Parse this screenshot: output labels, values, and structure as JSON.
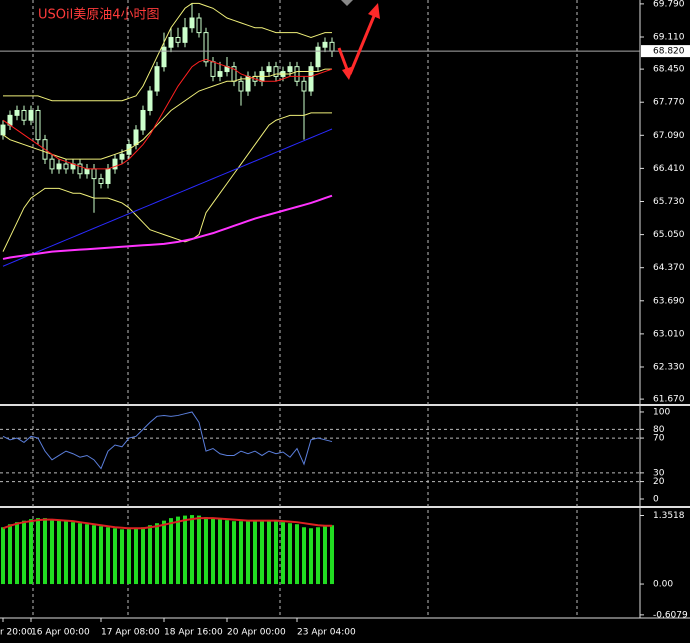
{
  "chart_data": [
    {
      "type": "candlestick",
      "title": "USOil美原油4小时图",
      "categories": [
        "r 20:00",
        null,
        null,
        null,
        "16 Apr 00:00",
        null,
        null,
        null,
        null,
        null,
        null,
        null,
        null,
        null,
        "17 Apr 08:00",
        null,
        null,
        null,
        null,
        null,
        null,
        null,
        null,
        "18 Apr 16:00",
        null,
        null,
        null,
        null,
        null,
        null,
        null,
        null,
        "20 Apr 00:00",
        null,
        null,
        null,
        null,
        null,
        null,
        null,
        null,
        null,
        "23 Apr 04:00",
        null,
        null,
        null,
        null,
        null
      ],
      "open": [
        67.1,
        67.3,
        67.5,
        67.6,
        67.4,
        67.6,
        67.0,
        66.6,
        66.4,
        66.5,
        66.4,
        66.5,
        66.3,
        66.4,
        66.2,
        66.1,
        66.4,
        66.6,
        66.7,
        66.9,
        67.2,
        67.6,
        68.0,
        68.5,
        68.9,
        69.1,
        69.0,
        69.3,
        69.5,
        69.2,
        68.6,
        68.3,
        68.4,
        68.5,
        68.2,
        68.0,
        68.3,
        68.2,
        68.4,
        68.5,
        68.3,
        68.4,
        68.5,
        68.2,
        68.0,
        68.5,
        68.9,
        69.0
      ],
      "high": [
        67.4,
        67.6,
        67.7,
        67.7,
        67.7,
        67.7,
        67.1,
        66.7,
        66.6,
        66.6,
        66.6,
        66.6,
        66.5,
        66.5,
        66.3,
        66.5,
        66.7,
        66.8,
        67.0,
        67.3,
        67.7,
        68.1,
        68.6,
        69.2,
        69.3,
        69.3,
        69.5,
        69.8,
        69.6,
        69.3,
        68.7,
        68.6,
        68.7,
        68.6,
        68.3,
        68.4,
        68.4,
        68.5,
        68.6,
        68.6,
        68.5,
        68.6,
        68.6,
        68.3,
        68.6,
        69.0,
        69.1,
        69.1
      ],
      "low": [
        67.0,
        67.2,
        67.4,
        67.3,
        67.3,
        66.9,
        66.5,
        66.3,
        66.3,
        66.3,
        66.3,
        66.2,
        66.2,
        65.5,
        66.0,
        66.0,
        66.3,
        66.5,
        66.6,
        66.8,
        67.1,
        67.5,
        67.9,
        68.4,
        68.8,
        68.9,
        68.9,
        69.2,
        69.1,
        68.5,
        68.2,
        68.2,
        68.3,
        68.1,
        67.7,
        67.9,
        68.1,
        68.1,
        68.3,
        68.2,
        68.2,
        68.3,
        68.1,
        67.0,
        67.9,
        68.4,
        68.8,
        68.7
      ],
      "close": [
        67.3,
        67.5,
        67.6,
        67.4,
        67.6,
        67.0,
        66.6,
        66.4,
        66.5,
        66.4,
        66.5,
        66.3,
        66.4,
        66.2,
        66.1,
        66.4,
        66.6,
        66.7,
        66.9,
        67.2,
        67.6,
        68.0,
        68.5,
        68.9,
        69.1,
        69.0,
        69.3,
        69.5,
        69.2,
        68.6,
        68.3,
        68.4,
        68.5,
        68.2,
        68.0,
        68.3,
        68.2,
        68.4,
        68.5,
        68.3,
        68.4,
        68.5,
        68.2,
        68.0,
        68.5,
        68.9,
        69.0,
        68.82
      ],
      "up_color": "#ccffcc",
      "down_color": "#000000",
      "wick_color": "#ccffcc",
      "overlays": [
        {
          "color": "#f0f07a",
          "values": [
            67.9,
            67.9,
            67.9,
            67.9,
            67.9,
            67.9,
            67.85,
            67.8,
            67.8,
            67.8,
            67.8,
            67.8,
            67.8,
            67.8,
            67.8,
            67.8,
            67.8,
            67.8,
            67.85,
            67.9,
            68.1,
            68.4,
            68.7,
            69.0,
            69.3,
            69.5,
            69.7,
            69.8,
            69.8,
            69.75,
            69.7,
            69.6,
            69.5,
            69.45,
            69.4,
            69.35,
            69.3,
            69.3,
            69.25,
            69.2,
            69.2,
            69.2,
            69.2,
            69.15,
            69.1,
            69.15,
            69.2,
            69.2
          ]
        },
        {
          "color": "#f0f07a",
          "values": [
            67.1,
            67.0,
            66.95,
            66.9,
            66.85,
            66.8,
            66.75,
            66.7,
            66.65,
            66.6,
            66.6,
            66.6,
            66.6,
            66.6,
            66.6,
            66.65,
            66.7,
            66.75,
            66.8,
            66.9,
            67.0,
            67.15,
            67.3,
            67.45,
            67.6,
            67.7,
            67.8,
            67.9,
            68.0,
            68.05,
            68.1,
            68.15,
            68.2,
            68.2,
            68.25,
            68.25,
            68.3,
            68.3,
            68.3,
            68.35,
            68.35,
            68.35,
            68.4,
            68.4,
            68.4,
            68.4,
            68.45,
            68.45
          ]
        },
        {
          "color": "#f0f07a",
          "values": [
            64.7,
            65.0,
            65.3,
            65.6,
            65.8,
            65.9,
            66.0,
            66.0,
            66.0,
            65.95,
            65.9,
            65.9,
            65.85,
            65.8,
            65.8,
            65.8,
            65.75,
            65.7,
            65.6,
            65.45,
            65.3,
            65.15,
            65.1,
            65.05,
            65.0,
            64.95,
            64.9,
            64.95,
            65.05,
            65.5,
            65.7,
            65.9,
            66.1,
            66.3,
            66.5,
            66.7,
            66.9,
            67.1,
            67.3,
            67.4,
            67.45,
            67.5,
            67.5,
            67.5,
            67.55,
            67.55,
            67.55,
            67.55
          ]
        },
        {
          "color": "#ff2020",
          "values": [
            67.4,
            67.3,
            67.2,
            67.1,
            67.0,
            66.9,
            66.8,
            66.7,
            66.6,
            66.55,
            66.5,
            66.45,
            66.4,
            66.4,
            66.4,
            66.4,
            66.45,
            66.5,
            66.6,
            66.75,
            66.9,
            67.1,
            67.35,
            67.6,
            67.85,
            68.1,
            68.3,
            68.5,
            68.6,
            68.65,
            68.6,
            68.55,
            68.5,
            68.45,
            68.35,
            68.3,
            68.25,
            68.2,
            68.2,
            68.2,
            68.25,
            68.3,
            68.3,
            68.3,
            68.3,
            68.35,
            68.4,
            68.45
          ]
        },
        {
          "color": "#2a2aff",
          "values": [
            64.4,
            64.46,
            64.52,
            64.58,
            64.64,
            64.7,
            64.76,
            64.82,
            64.88,
            64.94,
            65.0,
            65.06,
            65.12,
            65.18,
            65.24,
            65.3,
            65.36,
            65.42,
            65.48,
            65.54,
            65.6,
            65.66,
            65.72,
            65.78,
            65.84,
            65.9,
            65.96,
            66.02,
            66.08,
            66.14,
            66.2,
            66.26,
            66.32,
            66.38,
            66.44,
            66.5,
            66.56,
            66.62,
            66.68,
            66.74,
            66.8,
            66.86,
            66.92,
            66.98,
            67.04,
            67.1,
            67.16,
            67.22
          ]
        },
        {
          "color": "#ff33ff",
          "values": [
            64.55,
            64.58,
            64.6,
            64.62,
            64.64,
            64.66,
            64.68,
            64.7,
            64.71,
            64.72,
            64.73,
            64.74,
            64.75,
            64.76,
            64.77,
            64.78,
            64.79,
            64.8,
            64.81,
            64.82,
            64.83,
            64.84,
            64.85,
            64.86,
            64.88,
            64.9,
            64.93,
            64.96,
            65.0,
            65.04,
            65.08,
            65.13,
            65.18,
            65.23,
            65.28,
            65.33,
            65.38,
            65.42,
            65.46,
            65.5,
            65.54,
            65.58,
            65.62,
            65.66,
            65.7,
            65.75,
            65.8,
            65.85
          ]
        }
      ],
      "current_price": {
        "value": 68.82,
        "label": "68.820"
      },
      "ylim": [
        61.59,
        69.87
      ],
      "yticks": [
        {
          "value": 69.79,
          "label": "69.790"
        },
        {
          "value": 69.11,
          "label": "69.110"
        },
        {
          "value": 68.45,
          "label": "68.450"
        },
        {
          "value": 67.77,
          "label": "67.770"
        },
        {
          "value": 67.09,
          "label": "67.090"
        },
        {
          "value": 66.41,
          "label": "66.410"
        },
        {
          "value": 65.73,
          "label": "65.730"
        },
        {
          "value": 65.05,
          "label": "65.050"
        },
        {
          "value": 64.37,
          "label": "64.370"
        },
        {
          "value": 63.69,
          "label": "63.690"
        },
        {
          "value": 63.01,
          "label": "63.010"
        },
        {
          "value": 62.33,
          "label": "62.330"
        },
        {
          "value": 61.67,
          "label": "61.670"
        }
      ]
    },
    {
      "type": "line",
      "color": "#5b7fdc",
      "values": [
        72,
        68,
        70,
        65,
        72,
        70,
        55,
        45,
        50,
        55,
        52,
        48,
        50,
        45,
        35,
        55,
        62,
        60,
        70,
        72,
        80,
        88,
        95,
        96,
        95,
        96,
        98,
        100,
        88,
        55,
        58,
        52,
        50,
        50,
        55,
        52,
        55,
        50,
        55,
        52,
        54,
        48,
        58,
        40,
        68,
        70,
        68,
        66
      ],
      "ylim": [
        -6.9,
        105.7
      ],
      "yticks": [
        100,
        80,
        70,
        30,
        20,
        0
      ]
    },
    {
      "type": "bar",
      "color": "#22dd22",
      "line_color": "#dd2222",
      "values": [
        1.12,
        1.18,
        1.22,
        1.25,
        1.28,
        1.3,
        1.3,
        1.28,
        1.26,
        1.24,
        1.22,
        1.2,
        1.18,
        1.16,
        1.14,
        1.12,
        1.1,
        1.08,
        1.08,
        1.1,
        1.12,
        1.16,
        1.2,
        1.25,
        1.3,
        1.33,
        1.35,
        1.36,
        1.35,
        1.32,
        1.3,
        1.28,
        1.26,
        1.24,
        1.24,
        1.24,
        1.25,
        1.26,
        1.26,
        1.24,
        1.22,
        1.2,
        1.18,
        1.12,
        1.1,
        1.12,
        1.14,
        1.16
      ],
      "line_values": [
        1.1,
        1.15,
        1.19,
        1.22,
        1.24,
        1.26,
        1.27,
        1.27,
        1.26,
        1.25,
        1.24,
        1.22,
        1.2,
        1.18,
        1.16,
        1.14,
        1.12,
        1.11,
        1.1,
        1.1,
        1.1,
        1.12,
        1.14,
        1.17,
        1.2,
        1.23,
        1.26,
        1.28,
        1.3,
        1.3,
        1.3,
        1.29,
        1.28,
        1.27,
        1.26,
        1.25,
        1.25,
        1.25,
        1.25,
        1.25,
        1.24,
        1.23,
        1.22,
        1.2,
        1.18,
        1.16,
        1.15,
        1.15
      ],
      "ylim": [
        -0.65,
        1.48
      ],
      "yticks": [
        {
          "value": 1.3518,
          "label": "1.3518"
        },
        {
          "value": 0,
          "label": "0.00"
        },
        {
          "value": -0.6079,
          "label": "-0.6079"
        }
      ]
    }
  ]
}
